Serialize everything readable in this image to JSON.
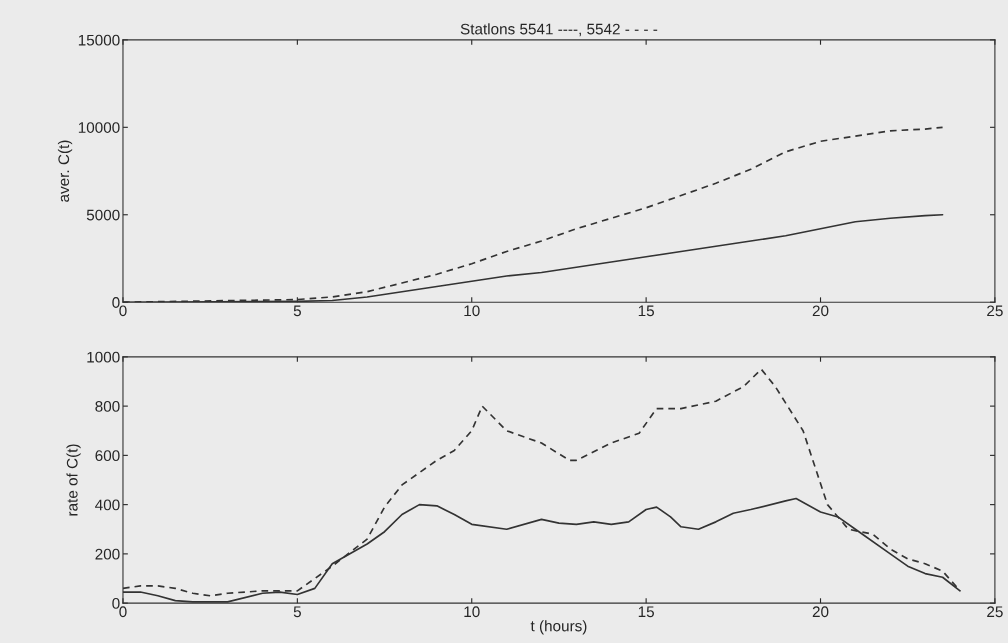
{
  "chart_data": [
    {
      "type": "line",
      "title": "Statlons 5541 ----, 5542 - - - -",
      "ylabel": "aver. C(t)",
      "xlim": [
        0,
        25
      ],
      "xticks": [
        0,
        5,
        10,
        15,
        20,
        25
      ],
      "ylim": [
        0,
        15000
      ],
      "yticks": [
        0,
        5000,
        10000,
        15000
      ],
      "grid": false,
      "marker": "none",
      "series": [
        {
          "color": "#333333",
          "line_style": "solid",
          "x": [
            0,
            5,
            6,
            7,
            8,
            9,
            10,
            11,
            12,
            13,
            14,
            15,
            16,
            17,
            18,
            19,
            20,
            21,
            22,
            23,
            23.5
          ],
          "values": [
            0,
            50,
            100,
            300,
            600,
            900,
            1200,
            1500,
            1700,
            2000,
            2300,
            2600,
            2900,
            3200,
            3500,
            3800,
            4200,
            4600,
            4800,
            4950,
            5000
          ]
        },
        {
          "color": "#333333",
          "line_style": "dashed",
          "x": [
            0,
            5,
            6,
            7,
            8,
            9,
            10,
            11,
            12,
            13,
            14,
            15,
            16,
            17,
            18,
            19,
            20,
            21,
            22,
            23,
            23.5
          ],
          "values": [
            0,
            150,
            300,
            600,
            1100,
            1600,
            2200,
            2900,
            3500,
            4200,
            4800,
            5400,
            6100,
            6800,
            7600,
            8600,
            9200,
            9500,
            9800,
            9900,
            10000
          ]
        }
      ]
    },
    {
      "type": "line",
      "xlabel": "t (hours)",
      "ylabel": "rate of C(t)",
      "xlim": [
        0,
        25
      ],
      "xticks": [
        0,
        5,
        10,
        15,
        20,
        25
      ],
      "ylim": [
        0,
        1000
      ],
      "yticks": [
        0,
        200,
        400,
        600,
        800,
        1000
      ],
      "grid": false,
      "marker": "none",
      "series": [
        {
          "color": "#333333",
          "line_style": "solid",
          "x": [
            0,
            0.5,
            1,
            1.5,
            2,
            3,
            4,
            4.5,
            5,
            5.5,
            6,
            7,
            7.5,
            8,
            8.5,
            9,
            9.5,
            10,
            11,
            12,
            12.5,
            13,
            13.5,
            14,
            14.5,
            15,
            15.3,
            15.7,
            16,
            16.5,
            17,
            17.5,
            18,
            19,
            19.3,
            20,
            20.5,
            21,
            22,
            22.5,
            23,
            23.5,
            24
          ],
          "values": [
            45,
            45,
            30,
            10,
            5,
            5,
            40,
            45,
            35,
            60,
            160,
            240,
            290,
            360,
            400,
            395,
            360,
            320,
            300,
            340,
            325,
            320,
            330,
            320,
            330,
            380,
            390,
            350,
            310,
            300,
            330,
            365,
            380,
            415,
            425,
            370,
            350,
            300,
            200,
            150,
            120,
            105,
            50
          ]
        },
        {
          "color": "#333333",
          "line_style": "dashed",
          "x": [
            0,
            0.5,
            1,
            1.5,
            2,
            2.5,
            3,
            4,
            5,
            5.5,
            6,
            7,
            7.5,
            8,
            9,
            9.5,
            10,
            10.3,
            11,
            12,
            12.8,
            13,
            14,
            14.8,
            15.3,
            16,
            17,
            17.8,
            18.3,
            18.7,
            19.5,
            20.2,
            20.8,
            21.5,
            22,
            22.5,
            23,
            23.5,
            24
          ],
          "values": [
            60,
            70,
            70,
            60,
            40,
            30,
            40,
            50,
            50,
            100,
            150,
            260,
            390,
            480,
            580,
            620,
            700,
            800,
            700,
            650,
            580,
            580,
            650,
            690,
            790,
            790,
            820,
            880,
            950,
            880,
            700,
            400,
            300,
            280,
            220,
            180,
            160,
            130,
            50
          ]
        }
      ]
    }
  ]
}
